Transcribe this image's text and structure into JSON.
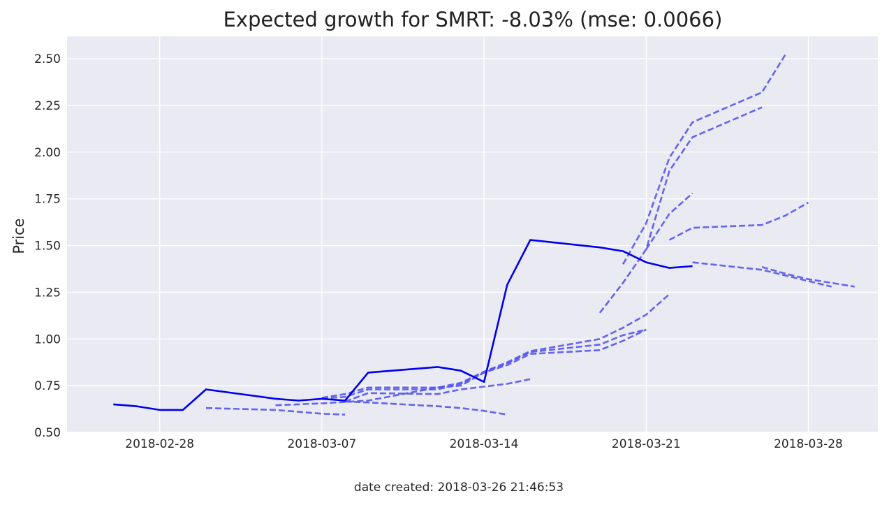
{
  "chart_data": {
    "type": "line",
    "title": "Expected growth for SMRT: -8.03% (mse: 0.0066)",
    "xlabel": "",
    "ylabel": "Price",
    "caption": "date created: 2018-03-26 21:46:53",
    "x_ticks": [
      "2018-02-28",
      "2018-03-07",
      "2018-03-14",
      "2018-03-21",
      "2018-03-28"
    ],
    "y_ticks": [
      "0.50",
      "0.75",
      "1.00",
      "1.25",
      "1.50",
      "1.75",
      "2.00",
      "2.25",
      "2.50"
    ],
    "xlim": [
      "2018-02-24",
      "2018-03-31"
    ],
    "ylim": [
      0.5,
      2.62
    ],
    "grid": true,
    "background": "#eaeaf2",
    "colors": {
      "actual": "#0000ee",
      "forecast": "#5555ee"
    },
    "series": [
      {
        "style": "solid",
        "points": [
          [
            "2018-02-26",
            0.65
          ],
          [
            "2018-02-27",
            0.64
          ],
          [
            "2018-02-28",
            0.62
          ],
          [
            "2018-03-01",
            0.62
          ],
          [
            "2018-03-02",
            0.73
          ],
          [
            "2018-03-05",
            0.68
          ],
          [
            "2018-03-06",
            0.67
          ],
          [
            "2018-03-07",
            0.68
          ],
          [
            "2018-03-08",
            0.67
          ],
          [
            "2018-03-09",
            0.82
          ],
          [
            "2018-03-12",
            0.85
          ],
          [
            "2018-03-13",
            0.83
          ],
          [
            "2018-03-14",
            0.77
          ],
          [
            "2018-03-15",
            1.29
          ],
          [
            "2018-03-16",
            1.53
          ],
          [
            "2018-03-19",
            1.49
          ],
          [
            "2018-03-20",
            1.47
          ],
          [
            "2018-03-21",
            1.41
          ],
          [
            "2018-03-22",
            1.38
          ],
          [
            "2018-03-23",
            1.39
          ]
        ]
      },
      {
        "style": "dashed",
        "points": [
          [
            "2018-03-02",
            0.63
          ],
          [
            "2018-03-05",
            0.62
          ],
          [
            "2018-03-07",
            0.6
          ],
          [
            "2018-03-08",
            0.595
          ]
        ]
      },
      {
        "style": "dashed",
        "points": [
          [
            "2018-03-05",
            0.645
          ],
          [
            "2018-03-07",
            0.655
          ],
          [
            "2018-03-09",
            0.67
          ],
          [
            "2018-03-12",
            0.74
          ],
          [
            "2018-03-13",
            0.75
          ],
          [
            "2018-03-14",
            0.82
          ],
          [
            "2018-03-15",
            0.86
          ],
          [
            "2018-03-16",
            0.92
          ],
          [
            "2018-03-19",
            0.94
          ],
          [
            "2018-03-20",
            0.99
          ],
          [
            "2018-03-21",
            1.05
          ]
        ]
      },
      {
        "style": "dashed",
        "points": [
          [
            "2018-03-07",
            0.68
          ],
          [
            "2018-03-08",
            0.69
          ],
          [
            "2018-03-09",
            0.73
          ],
          [
            "2018-03-12",
            0.73
          ],
          [
            "2018-03-13",
            0.76
          ],
          [
            "2018-03-14",
            0.82
          ],
          [
            "2018-03-15",
            0.87
          ],
          [
            "2018-03-16",
            0.93
          ],
          [
            "2018-03-19",
            0.97
          ],
          [
            "2018-03-20",
            1.02
          ],
          [
            "2018-03-21",
            1.05
          ]
        ]
      },
      {
        "style": "dashed",
        "points": [
          [
            "2018-03-07",
            0.685
          ],
          [
            "2018-03-08",
            0.705
          ],
          [
            "2018-03-09",
            0.74
          ],
          [
            "2018-03-12",
            0.74
          ],
          [
            "2018-03-13",
            0.765
          ],
          [
            "2018-03-14",
            0.825
          ],
          [
            "2018-03-15",
            0.875
          ],
          [
            "2018-03-16",
            0.935
          ],
          [
            "2018-03-19",
            1.0
          ],
          [
            "2018-03-20",
            1.06
          ],
          [
            "2018-03-21",
            1.13
          ],
          [
            "2018-03-22",
            1.24
          ]
        ]
      },
      {
        "style": "dashed",
        "points": [
          [
            "2018-03-08",
            0.665
          ],
          [
            "2018-03-09",
            0.66
          ],
          [
            "2018-03-12",
            0.64
          ],
          [
            "2018-03-13",
            0.63
          ],
          [
            "2018-03-14",
            0.615
          ],
          [
            "2018-03-15",
            0.595
          ]
        ]
      },
      {
        "style": "dashed",
        "points": [
          [
            "2018-03-08",
            0.665
          ],
          [
            "2018-03-09",
            0.71
          ],
          [
            "2018-03-12",
            0.705
          ],
          [
            "2018-03-13",
            0.73
          ],
          [
            "2018-03-14",
            0.745
          ],
          [
            "2018-03-15",
            0.76
          ],
          [
            "2018-03-16",
            0.785
          ]
        ]
      },
      {
        "style": "dashed",
        "points": [
          [
            "2018-03-20",
            1.4
          ],
          [
            "2018-03-21",
            1.62
          ],
          [
            "2018-03-22",
            1.97
          ],
          [
            "2018-03-23",
            2.16
          ],
          [
            "2018-03-26",
            2.32
          ],
          [
            "2018-03-27",
            2.52
          ]
        ]
      },
      {
        "style": "dashed",
        "points": [
          [
            "2018-03-19",
            1.14
          ],
          [
            "2018-03-20",
            1.3
          ],
          [
            "2018-03-21",
            1.48
          ],
          [
            "2018-03-22",
            1.9
          ],
          [
            "2018-03-23",
            2.08
          ],
          [
            "2018-03-26",
            2.24
          ]
        ]
      },
      {
        "style": "dashed",
        "points": [
          [
            "2018-03-21",
            1.48
          ],
          [
            "2018-03-22",
            1.67
          ],
          [
            "2018-03-23",
            1.78
          ]
        ]
      },
      {
        "style": "dashed",
        "points": [
          [
            "2018-03-22",
            1.53
          ],
          [
            "2018-03-23",
            1.595
          ],
          [
            "2018-03-26",
            1.61
          ],
          [
            "2018-03-27",
            1.66
          ],
          [
            "2018-03-28",
            1.73
          ]
        ]
      },
      {
        "style": "dashed",
        "points": [
          [
            "2018-03-23",
            1.41
          ],
          [
            "2018-03-26",
            1.37
          ],
          [
            "2018-03-27",
            1.34
          ],
          [
            "2018-03-28",
            1.31
          ],
          [
            "2018-03-29",
            1.28
          ]
        ]
      },
      {
        "style": "dashed",
        "points": [
          [
            "2018-03-26",
            1.385
          ],
          [
            "2018-03-27",
            1.35
          ],
          [
            "2018-03-28",
            1.32
          ],
          [
            "2018-03-29",
            1.3
          ],
          [
            "2018-03-30",
            1.28
          ]
        ]
      }
    ]
  }
}
